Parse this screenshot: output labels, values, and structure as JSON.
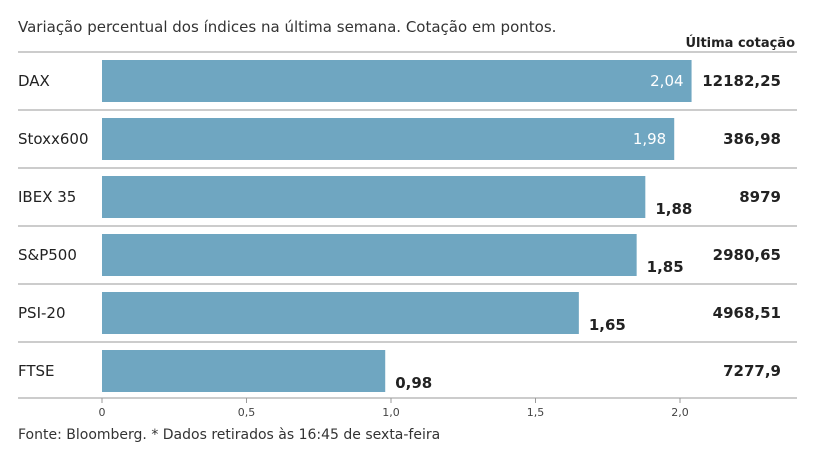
{
  "chart_data": {
    "type": "bar",
    "orientation": "horizontal",
    "subtitle": "Variação percentual dos índices na última semana. Cotação em pontos.",
    "column_header": "Última cotação",
    "categories": [
      "DAX",
      "Stoxx600",
      "IBEX 35",
      "S&P500",
      "PSI-20",
      "FTSE"
    ],
    "values": [
      2.04,
      1.98,
      1.88,
      1.85,
      1.65,
      0.98
    ],
    "value_labels": [
      "2,04",
      "1,98",
      "1,88",
      "1,85",
      "1,65",
      "0,98"
    ],
    "quotes": [
      "12182,25",
      "386,98",
      "8979",
      "2980,65",
      "4968,51",
      "7277,9"
    ],
    "x_ticks": [
      0,
      0.5,
      1.0,
      1.5,
      2.0
    ],
    "x_tick_labels": [
      "0",
      "0,5",
      "1,0",
      "1,5",
      "2,0"
    ],
    "xlim": [
      0,
      2.4
    ],
    "bar_color": "#6fa6c1",
    "footer": "Fonte: Bloomberg.  * Dados retirados às 16:45 de sexta-feira"
  }
}
